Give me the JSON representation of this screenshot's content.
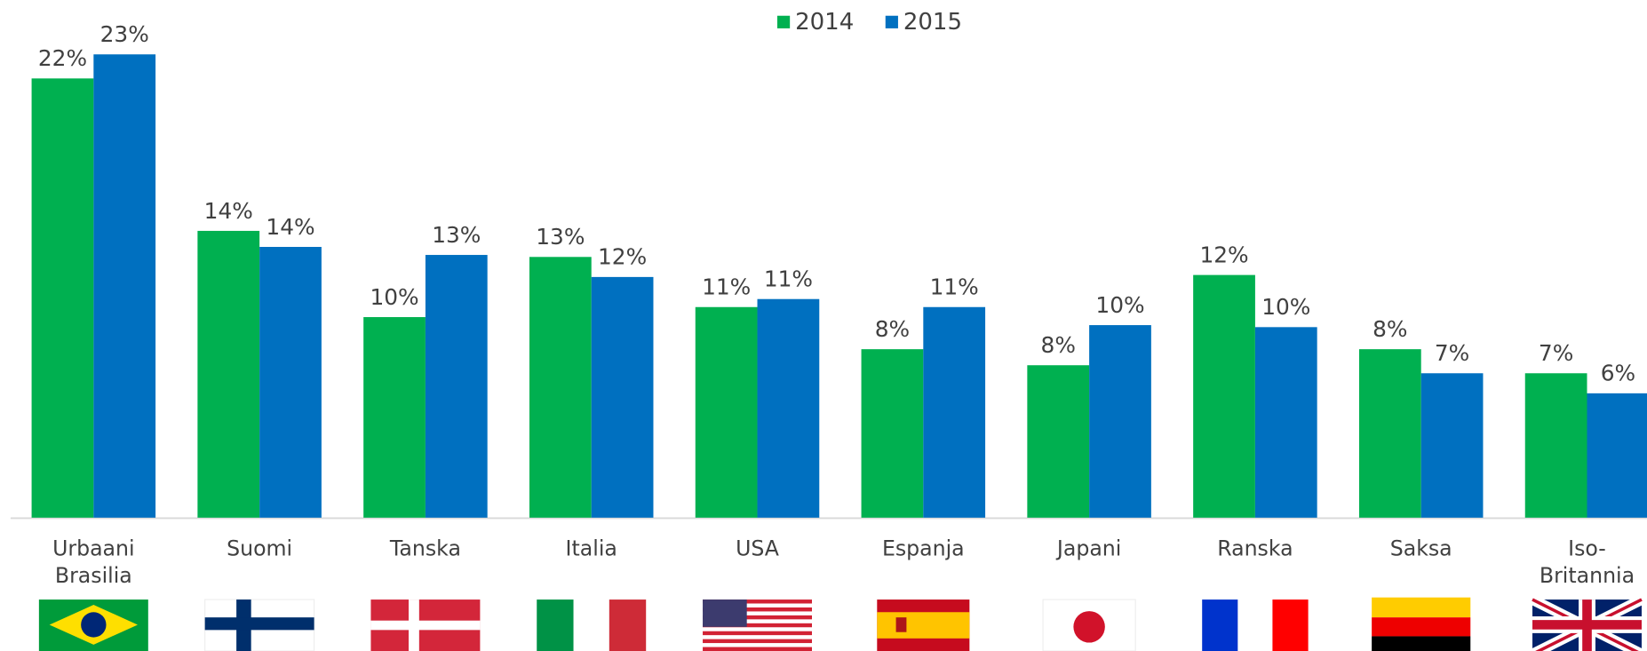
{
  "chart_data": {
    "type": "bar",
    "categories": [
      "Urbaani Brasilia",
      "Suomi",
      "Tanska",
      "Italia",
      "USA",
      "Espanja",
      "Japani",
      "Ranska",
      "Saksa",
      "Iso-Britannia"
    ],
    "series": [
      {
        "name": "2014",
        "color": "#00b050",
        "values": [
          21.9,
          14.3,
          10.0,
          13.0,
          10.5,
          8.4,
          7.6,
          12.1,
          8.4,
          7.2
        ],
        "value_labels": [
          "22%",
          "14%",
          "10%",
          "13%",
          "11%",
          "8%",
          "8%",
          "12%",
          "8%",
          "7%"
        ]
      },
      {
        "name": "2015",
        "color": "#0070c0",
        "values": [
          23.1,
          13.5,
          13.1,
          12.0,
          10.9,
          10.5,
          9.6,
          9.5,
          7.2,
          6.2
        ],
        "value_labels": [
          "23%",
          "14%",
          "13%",
          "12%",
          "11%",
          "11%",
          "10%",
          "10%",
          "7%",
          "6%"
        ]
      }
    ],
    "ylim": [
      0,
      25
    ],
    "legend": "top"
  }
}
